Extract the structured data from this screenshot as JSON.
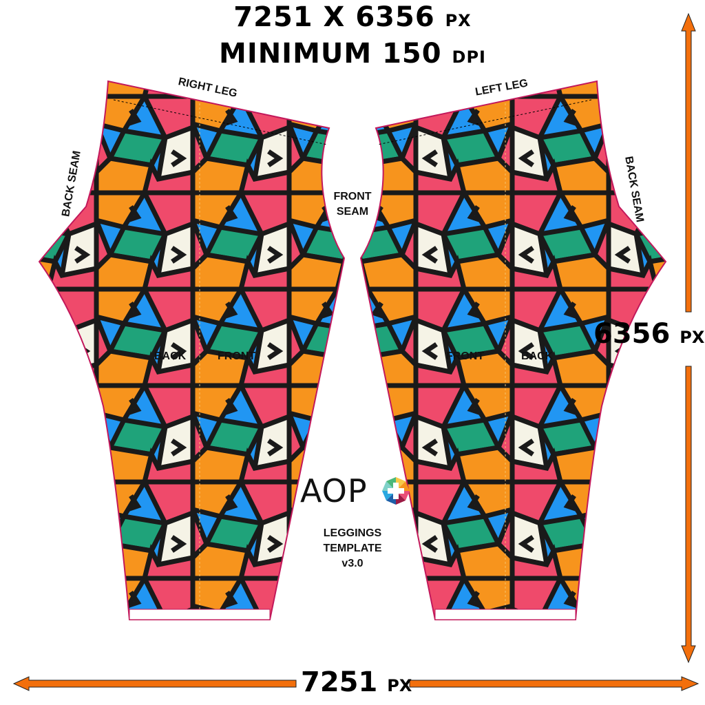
{
  "header": {
    "dimensions_value": "7251 X 6356",
    "dimensions_unit": "PX",
    "min_label": "MINIMUM 150",
    "min_unit": "DPI"
  },
  "pieces": {
    "right_leg": {
      "title": "RIGHT LEG",
      "back_seam": "BACK SEAM",
      "back": "BACK",
      "front": "FRONT"
    },
    "left_leg": {
      "title": "LEFT LEG",
      "back_seam": "BACK SEAM",
      "back": "BACK",
      "front": "FRONT"
    },
    "front_seam": [
      "FRONT",
      "SEAM"
    ]
  },
  "dimensions": {
    "height_value": "6356",
    "height_unit": "PX",
    "width_value": "7251",
    "width_unit": "PX"
  },
  "branding": {
    "logo_text": "AOP",
    "product_lines": [
      "LEGGINGS",
      "TEMPLATE",
      "v3.0"
    ]
  },
  "colors": {
    "arrow": "#f36f0c",
    "outline": "#c2185b",
    "pattern": [
      "#f7941d",
      "#ef4a6b",
      "#2196f3",
      "#1fa37a",
      "#f5f3e6",
      "#1a1a1a"
    ]
  }
}
